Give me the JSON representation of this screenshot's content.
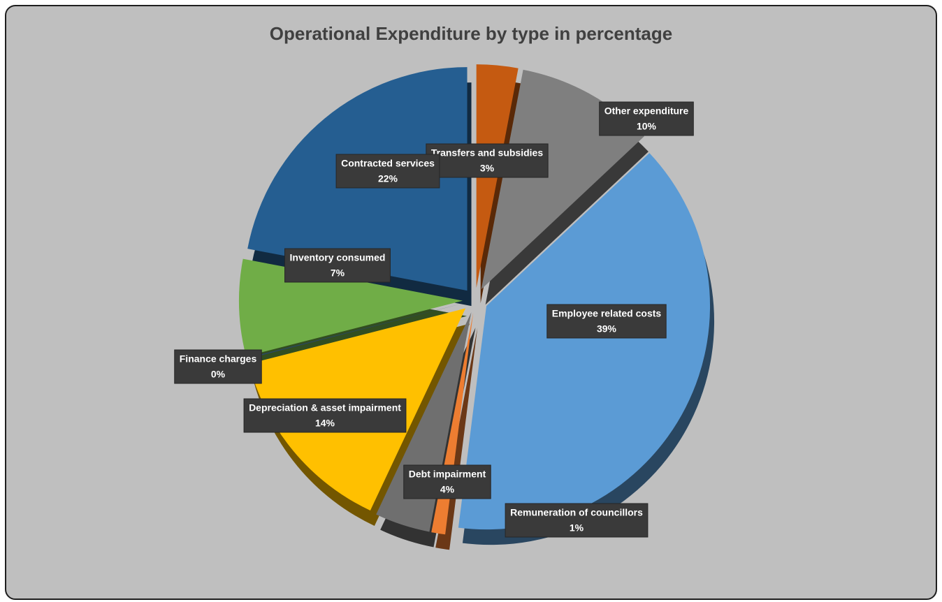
{
  "chart_data": {
    "type": "pie",
    "title": "Operational Expenditure by type in percentage",
    "categories": [
      "Transfers and subsidies",
      "Other expenditure",
      "Employee related costs",
      "Remuneration of councillors",
      "Debt impairment",
      "Depreciation & asset impairment",
      "Finance charges",
      "Inventory consumed",
      "Contracted services"
    ],
    "values": [
      3,
      10,
      39,
      1,
      4,
      14,
      0,
      7,
      22
    ],
    "value_labels": [
      "3%",
      "10%",
      "39%",
      "1%",
      "4%",
      "14%",
      "0%",
      "7%",
      "22%"
    ],
    "colors": [
      "#c55a11",
      "#7f7f7f",
      "#5b9bd5",
      "#ed7d31",
      "#6f6f6f",
      "#ffc000",
      "#264478",
      "#70ad47",
      "#255e91"
    ]
  }
}
